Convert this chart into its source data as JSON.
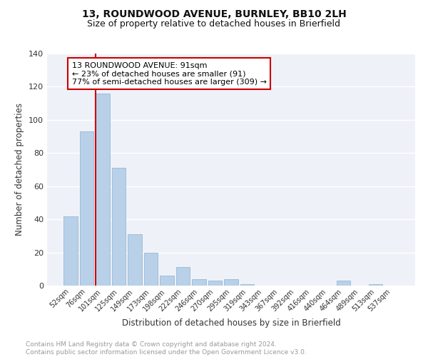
{
  "title": "13, ROUNDWOOD AVENUE, BURNLEY, BB10 2LH",
  "subtitle": "Size of property relative to detached houses in Brierfield",
  "xlabel": "Distribution of detached houses by size in Brierfield",
  "ylabel": "Number of detached properties",
  "categories": [
    "52sqm",
    "76sqm",
    "101sqm",
    "125sqm",
    "149sqm",
    "173sqm",
    "198sqm",
    "222sqm",
    "246sqm",
    "270sqm",
    "295sqm",
    "319sqm",
    "343sqm",
    "367sqm",
    "392sqm",
    "416sqm",
    "440sqm",
    "464sqm",
    "489sqm",
    "513sqm",
    "537sqm"
  ],
  "values": [
    42,
    93,
    116,
    71,
    31,
    20,
    6,
    11,
    4,
    3,
    4,
    1,
    0,
    0,
    0,
    0,
    0,
    3,
    0,
    1,
    0
  ],
  "bar_color": "#b8d0e8",
  "bar_edge_color": "#9ab8d8",
  "vline_color": "#cc0000",
  "annotation_text": "13 ROUNDWOOD AVENUE: 91sqm\n← 23% of detached houses are smaller (91)\n77% of semi-detached houses are larger (309) →",
  "annotation_box_color": "#ffffff",
  "annotation_box_edge_color": "#cc0000",
  "ylim": [
    0,
    140
  ],
  "yticks": [
    0,
    20,
    40,
    60,
    80,
    100,
    120,
    140
  ],
  "footer_text": "Contains HM Land Registry data © Crown copyright and database right 2024.\nContains public sector information licensed under the Open Government Licence v3.0.",
  "bg_color": "#eef2f8",
  "grid_color": "#ffffff",
  "title_fontsize": 10,
  "subtitle_fontsize": 9,
  "annotation_fontsize": 8,
  "footer_fontsize": 6.5,
  "ylabel_fontsize": 8.5,
  "xlabel_fontsize": 8.5,
  "tick_fontsize": 7
}
